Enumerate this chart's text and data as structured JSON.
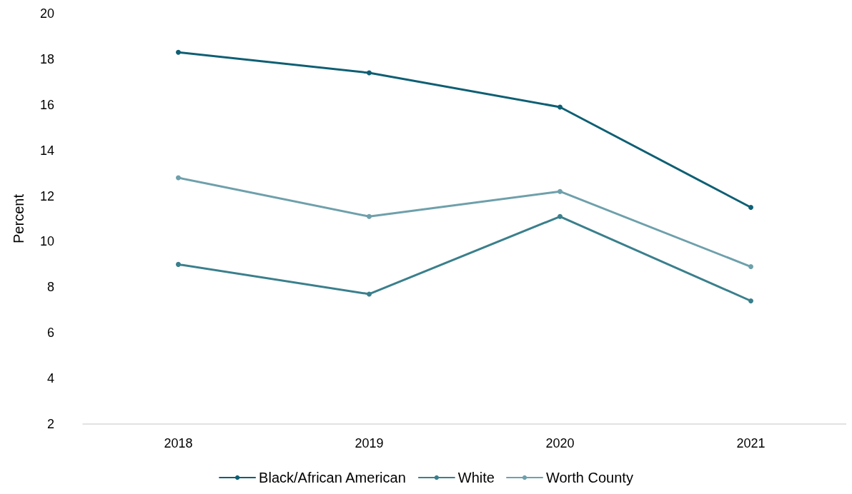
{
  "chart_data": {
    "type": "line",
    "ylabel": "Percent",
    "categories": [
      "2018",
      "2019",
      "2020",
      "2021"
    ],
    "series": [
      {
        "name": "Black/African American",
        "color": "#0e5f73",
        "values": [
          18.3,
          17.4,
          15.9,
          11.5
        ]
      },
      {
        "name": "White",
        "color": "#3a7f8c",
        "values": [
          9.0,
          7.7,
          11.1,
          7.4
        ]
      },
      {
        "name": "Worth County",
        "color": "#6ea0ab",
        "values": [
          12.8,
          11.1,
          12.2,
          8.9
        ]
      }
    ],
    "ylim": [
      2,
      20
    ],
    "yticks": [
      2,
      4,
      6,
      8,
      10,
      12,
      14,
      16,
      18,
      20
    ],
    "grid": false,
    "legend": "bottom",
    "marker": "circle",
    "line_style": "solid"
  }
}
